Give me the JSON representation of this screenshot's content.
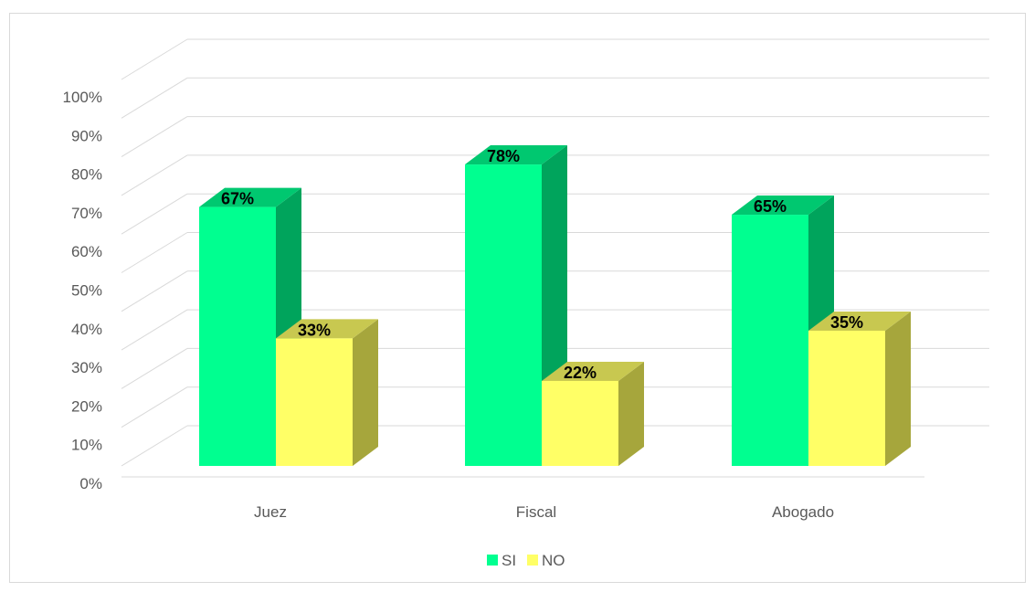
{
  "chart_data": {
    "type": "bar",
    "style": "3d-clustered-column",
    "categories": [
      "Juez",
      "Fiscal",
      "Abogado"
    ],
    "series": [
      {
        "name": "SI",
        "values": [
          67,
          78,
          65
        ],
        "labels": [
          "67%",
          "78%",
          "65%"
        ],
        "color": "#00ff90",
        "side_color": "#00a45c",
        "top_color": "#00c870"
      },
      {
        "name": "NO",
        "values": [
          33,
          22,
          35
        ],
        "labels": [
          "33%",
          "22%",
          "35%"
        ],
        "color": "#ffff66",
        "side_color": "#a6a63c",
        "top_color": "#c8c850"
      }
    ],
    "y_ticks": [
      "0%",
      "10%",
      "20%",
      "30%",
      "40%",
      "50%",
      "60%",
      "70%",
      "80%",
      "90%",
      "100%"
    ],
    "ylim": [
      0,
      100
    ],
    "grid": true,
    "legend_position": "bottom"
  }
}
